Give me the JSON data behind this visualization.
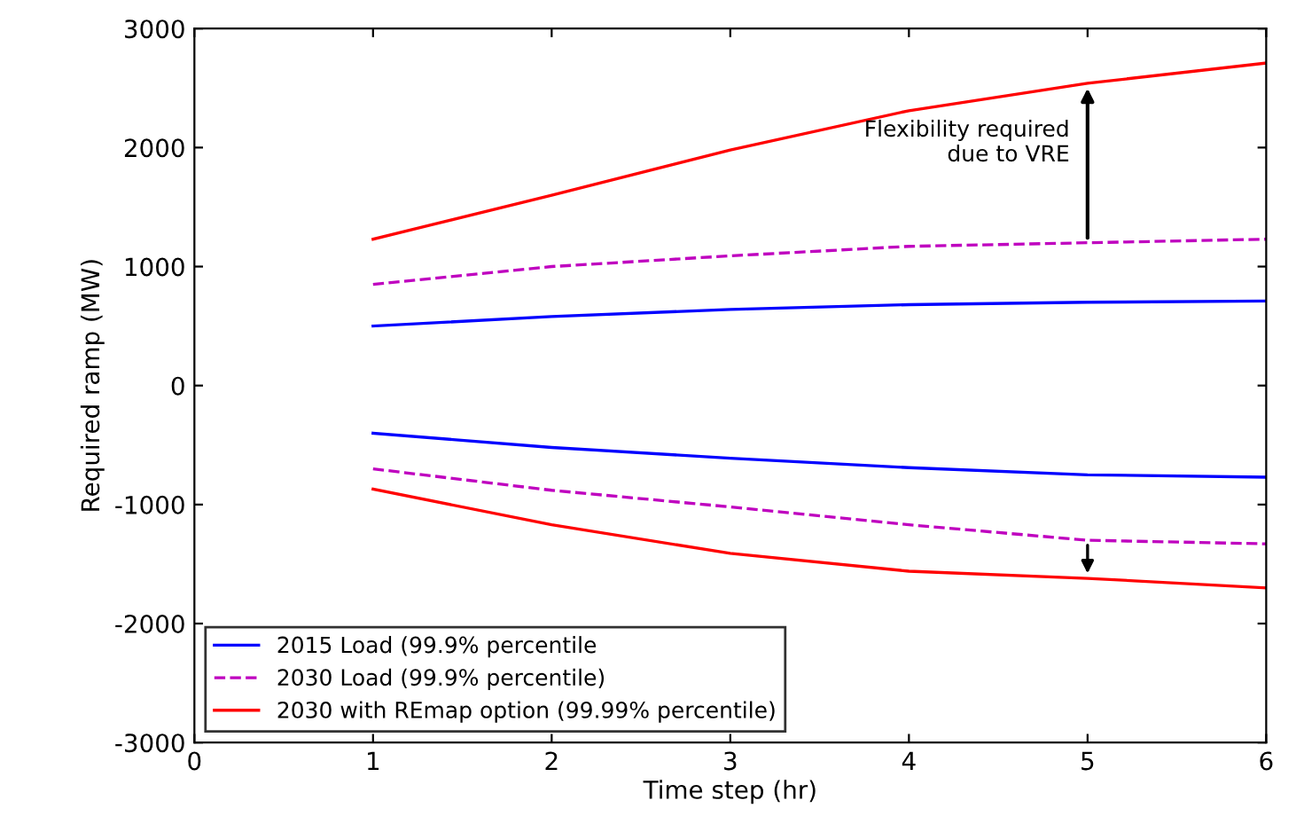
{
  "chart_data": {
    "type": "line",
    "xlabel": "Time step (hr)",
    "ylabel": "Required ramp (MW)",
    "x": [
      1,
      2,
      3,
      4,
      5,
      6
    ],
    "xlim": [
      0,
      6
    ],
    "xticks": [
      0,
      1,
      2,
      3,
      4,
      5,
      6
    ],
    "ylim": [
      -3000,
      3000
    ],
    "yticks": [
      -3000,
      -2000,
      -1000,
      0,
      1000,
      2000,
      3000
    ],
    "grid": false,
    "legend": "bottom left",
    "marker": "none",
    "series": [
      {
        "name": "2015 Load (99.9% percentile",
        "color": "#0000ff",
        "line_style": "solid",
        "values": [
          500,
          580,
          640,
          680,
          700,
          710
        ]
      },
      {
        "color": "#0000ff",
        "line_style": "solid",
        "values": [
          -400,
          -520,
          -610,
          -690,
          -750,
          -770
        ]
      },
      {
        "name": "2030 Load (99.9% percentile)",
        "color": "#bf00bf",
        "line_style": "dashed",
        "values": [
          850,
          1000,
          1090,
          1170,
          1200,
          1230
        ]
      },
      {
        "color": "#bf00bf",
        "line_style": "dashed",
        "values": [
          -700,
          -880,
          -1020,
          -1170,
          -1300,
          -1330
        ]
      },
      {
        "name": "2030 with REmap option (99.99% percentile)",
        "color": "#ff0000",
        "line_style": "solid",
        "values": [
          1230,
          1600,
          1980,
          2310,
          2540,
          2710
        ]
      },
      {
        "color": "#ff0000",
        "line_style": "solid",
        "values": [
          -870,
          -1170,
          -1410,
          -1560,
          -1620,
          -1700
        ]
      }
    ],
    "annotations": [
      {
        "text": "Flexibility required\n due to VRE",
        "x": 5,
        "y": 2540
      }
    ]
  }
}
